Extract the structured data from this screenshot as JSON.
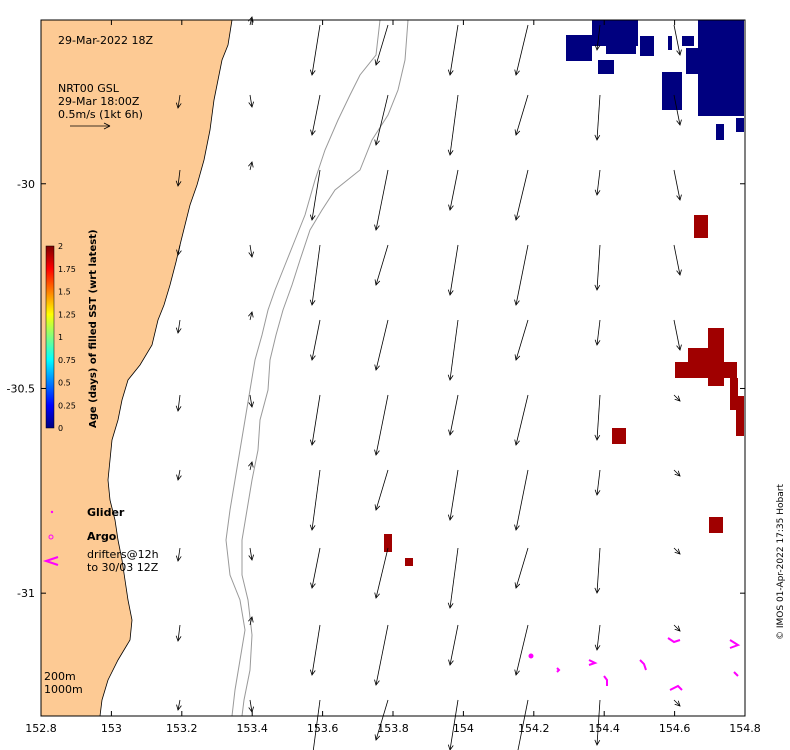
{
  "map": {
    "date_label": "29-Mar-2022 18Z",
    "current_legend": {
      "line1": "NRT00 GSL",
      "line2": "29-Mar 18:00Z",
      "line3": "0.5m/s (1kt 6h)"
    },
    "colorbar": {
      "title": "Age (days) of filled SST (wrt latest)",
      "ticks": [
        "0",
        "0.25",
        "0.5",
        "0.75",
        "1",
        "1.25",
        "1.5",
        "1.75",
        "2"
      ],
      "colors": [
        "#00007f",
        "#0000ff",
        "#007fff",
        "#00ffff",
        "#7fff7f",
        "#ffff00",
        "#ff7f00",
        "#ff0000",
        "#7f0000"
      ]
    },
    "legend": {
      "glider": "Glider",
      "argo": "Argo",
      "drifters_line1": "drifters@12h",
      "drifters_line2": "to 30/03 12Z"
    },
    "isobaths": {
      "line1": "200m",
      "line2": "1000m"
    },
    "x_ticks": [
      "152.8",
      "153",
      "153.2",
      "153.4",
      "153.6",
      "153.8",
      "154",
      "154.2",
      "154.4",
      "154.6",
      "154.8"
    ],
    "y_ticks": [
      "-30",
      "-30.5",
      "-31"
    ],
    "credit": "© IMOS 01-Apr-2022 17:35 Hobart",
    "colors": {
      "land": "#fdca94",
      "old_sst": "#00007f",
      "fresh_sst": "#a00000",
      "drifter": "#ff00ff",
      "bathy": "#999999"
    },
    "extent": {
      "lon": [
        152.8,
        154.8
      ],
      "lat": [
        -31.3,
        -29.6
      ]
    }
  }
}
